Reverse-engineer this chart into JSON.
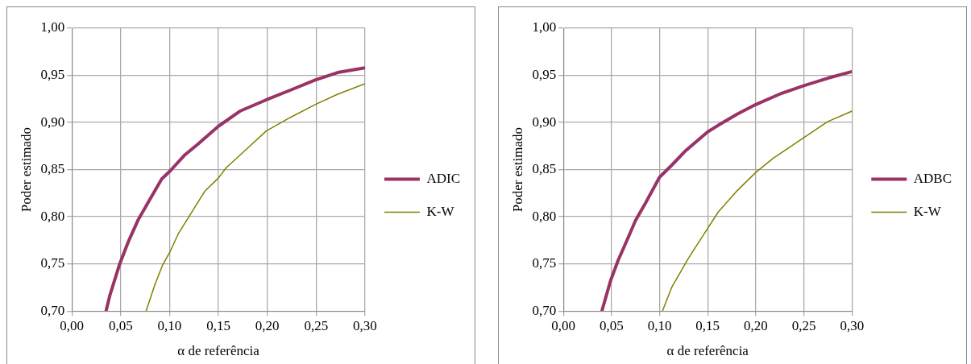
{
  "chart_data": [
    {
      "type": "line",
      "xlabel": "α de referência",
      "ylabel": "Poder estimado",
      "legend": "right",
      "grid": true,
      "marker": "none",
      "xlim": [
        0,
        0.3
      ],
      "xticks": [
        {
          "value": 0,
          "label": "0,00"
        },
        {
          "value": 0.05,
          "label": "0,05"
        },
        {
          "value": 0.1,
          "label": "0,10"
        },
        {
          "value": 0.15,
          "label": "0,15"
        },
        {
          "value": 0.2,
          "label": "0,20"
        },
        {
          "value": 0.25,
          "label": "0,25"
        },
        {
          "value": 0.3,
          "label": "0,30"
        }
      ],
      "ylim": [
        0.7,
        1
      ],
      "yticks": [
        {
          "value": 0.7,
          "label": "0,70"
        },
        {
          "value": 0.75,
          "label": "0,75"
        },
        {
          "value": 0.8,
          "label": "0,80"
        },
        {
          "value": 0.85,
          "label": "0,85"
        },
        {
          "value": 0.9,
          "label": "0,90"
        },
        {
          "value": 0.95,
          "label": "0,95"
        },
        {
          "value": 1,
          "label": "1,00"
        }
      ],
      "series": [
        {
          "name": "ADIC",
          "color": "#993366",
          "x": [
            0.035,
            0.039,
            0.049,
            0.058,
            0.068,
            0.078,
            0.092,
            0.101,
            0.115,
            0.129,
            0.15,
            0.172,
            0.199,
            0.223,
            0.249,
            0.272,
            0.3
          ],
          "values": [
            0.7,
            0.717,
            0.75,
            0.774,
            0.797,
            0.815,
            0.84,
            0.849,
            0.865,
            0.877,
            0.896,
            0.912,
            0.924,
            0.934,
            0.945,
            0.953,
            0.958
          ]
        },
        {
          "name": "K-W",
          "color": "#808000",
          "x": [
            0.076,
            0.085,
            0.093,
            0.101,
            0.109,
            0.121,
            0.136,
            0.15,
            0.158,
            0.178,
            0.199,
            0.223,
            0.249,
            0.272,
            0.3
          ],
          "values": [
            0.7,
            0.728,
            0.749,
            0.764,
            0.782,
            0.802,
            0.827,
            0.841,
            0.852,
            0.871,
            0.891,
            0.905,
            0.919,
            0.93,
            0.941
          ]
        }
      ]
    },
    {
      "type": "line",
      "xlabel": "α de referência",
      "ylabel": "Poder estimado",
      "legend": "right",
      "grid": true,
      "marker": "none",
      "xlim": [
        0,
        0.3
      ],
      "xticks": [
        {
          "value": 0,
          "label": "0,00"
        },
        {
          "value": 0.05,
          "label": "0,05"
        },
        {
          "value": 0.1,
          "label": "0,10"
        },
        {
          "value": 0.15,
          "label": "0,15"
        },
        {
          "value": 0.2,
          "label": "0,20"
        },
        {
          "value": 0.25,
          "label": "0,25"
        },
        {
          "value": 0.3,
          "label": "0,30"
        }
      ],
      "ylim": [
        0.7,
        1
      ],
      "yticks": [
        {
          "value": 0.7,
          "label": "0,70"
        },
        {
          "value": 0.75,
          "label": "0,75"
        },
        {
          "value": 0.8,
          "label": "0,80"
        },
        {
          "value": 0.85,
          "label": "0,85"
        },
        {
          "value": 0.9,
          "label": "0,90"
        },
        {
          "value": 0.95,
          "label": "0,95"
        },
        {
          "value": 1,
          "label": "1,00"
        }
      ],
      "series": [
        {
          "name": "ADBC",
          "color": "#993366",
          "x": [
            0.04,
            0.049,
            0.057,
            0.067,
            0.075,
            0.084,
            0.1,
            0.113,
            0.127,
            0.15,
            0.161,
            0.181,
            0.2,
            0.227,
            0.25,
            0.275,
            0.3
          ],
          "values": [
            0.7,
            0.732,
            0.754,
            0.777,
            0.796,
            0.812,
            0.842,
            0.855,
            0.87,
            0.89,
            0.897,
            0.909,
            0.919,
            0.931,
            0.939,
            0.947,
            0.954
          ]
        },
        {
          "name": "K-W",
          "color": "#808000",
          "x": [
            0.103,
            0.113,
            0.121,
            0.13,
            0.147,
            0.161,
            0.181,
            0.2,
            0.218,
            0.25,
            0.275,
            0.3
          ],
          "values": [
            0.7,
            0.726,
            0.74,
            0.756,
            0.783,
            0.805,
            0.828,
            0.847,
            0.862,
            0.884,
            0.901,
            0.912
          ]
        }
      ]
    }
  ]
}
